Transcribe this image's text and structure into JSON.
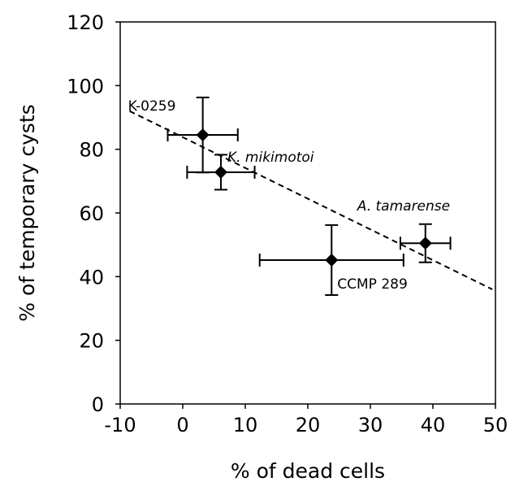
{
  "chart_data": {
    "type": "scatter",
    "x_label": "% of dead cells",
    "y_label": "% of temporary cysts",
    "xlim": [
      -10,
      50
    ],
    "xticks": [
      -10,
      0,
      10,
      20,
      30,
      40,
      50
    ],
    "ylim": [
      0,
      120
    ],
    "yticks": [
      0,
      20,
      40,
      60,
      80,
      100,
      120
    ],
    "grid": false,
    "series": [
      {
        "color": "#000000",
        "x": [
          3.2,
          6.1,
          23.8,
          38.8
        ],
        "values": [
          84.5,
          72.8,
          45.2,
          50.5
        ],
        "xerr": [
          5.6,
          5.4,
          11.5,
          4.0
        ],
        "yerr": [
          11.8,
          5.5,
          11.0,
          6.0
        ],
        "labels": [
          "K-0259",
          "K. mikimotoi",
          "CCMP 289",
          "A. tamarense"
        ]
      }
    ],
    "trendline": {
      "x": [
        -8.5,
        49.5
      ],
      "values": [
        92,
        36
      ]
    }
  }
}
